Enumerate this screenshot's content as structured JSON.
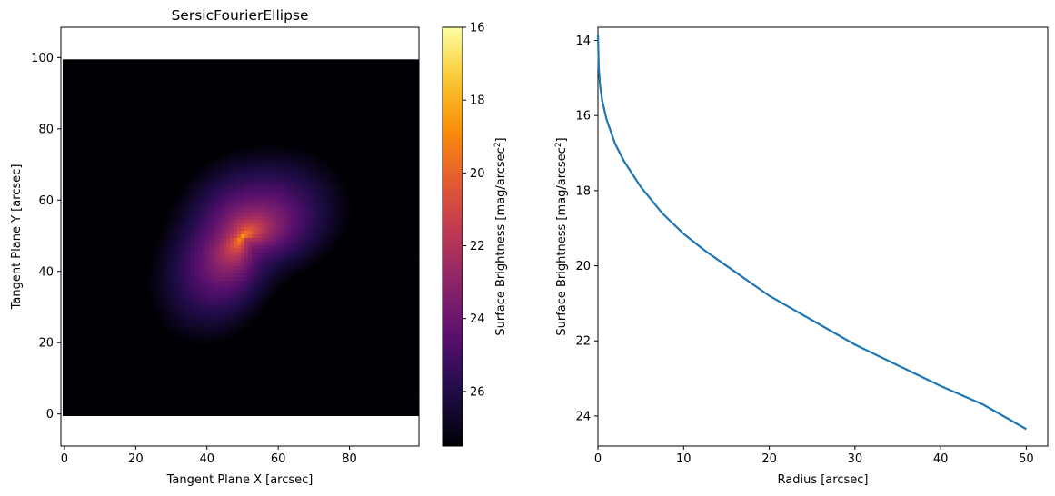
{
  "chart_data": [
    {
      "type": "heatmap",
      "title": "SersicFourierEllipse",
      "xlabel": "Tangent Plane X [arcsec]",
      "ylabel": "Tangent Plane Y [arcsec]",
      "xlim": [
        -1,
        99.5
      ],
      "ylim": [
        -9,
        108.5
      ],
      "xticks": [
        0,
        20,
        40,
        60,
        80
      ],
      "yticks": [
        0,
        20,
        40,
        60,
        80,
        100
      ],
      "image_extent": {
        "x": [
          -0.5,
          99.5
        ],
        "y": [
          -0.5,
          99.5
        ]
      },
      "grid_size": 100,
      "center": [
        50,
        50
      ],
      "min_value": 16,
      "max_value": 27.5,
      "colormap": "inferno",
      "colormap_reversed": true,
      "features": "bright core at (50,50); bright diagonal arms toward upper-left and lower-right; darkest regions at top (~x=35) and lower-left corner",
      "colorbar": {
        "label_main": "Surface Brightness [mag/arcsec",
        "label_sup": "2",
        "label_close": "]",
        "range": [
          16,
          27.5
        ],
        "ticks": [
          "16",
          "18",
          "20",
          "22",
          "24",
          "26"
        ],
        "inverted": true
      },
      "grid": false
    },
    {
      "type": "line",
      "title": "",
      "xlabel": "Radius [arcsec]",
      "ylabel_main": "Surface Brightness [mag/arcsec",
      "ylabel_sup": "2",
      "ylabel_close": "]",
      "xlim": [
        0,
        52.5
      ],
      "ylim": [
        24.8,
        13.65
      ],
      "y_inverted": true,
      "xticks": [
        0,
        10,
        20,
        30,
        40,
        50
      ],
      "yticks": [
        14,
        16,
        18,
        20,
        22,
        24
      ],
      "series": [
        {
          "color": "#1f77b4",
          "x": [
            0,
            0.1,
            0.25,
            0.5,
            1,
            2,
            3,
            5,
            7.5,
            10,
            12.5,
            15,
            20,
            25,
            30,
            35,
            40,
            45,
            50
          ],
          "y": [
            13.85,
            14.75,
            15.2,
            15.6,
            16.1,
            16.75,
            17.2,
            17.9,
            18.6,
            19.15,
            19.6,
            20.0,
            20.8,
            21.45,
            22.1,
            22.65,
            23.2,
            23.7,
            24.35
          ]
        }
      ],
      "grid": false
    }
  ]
}
